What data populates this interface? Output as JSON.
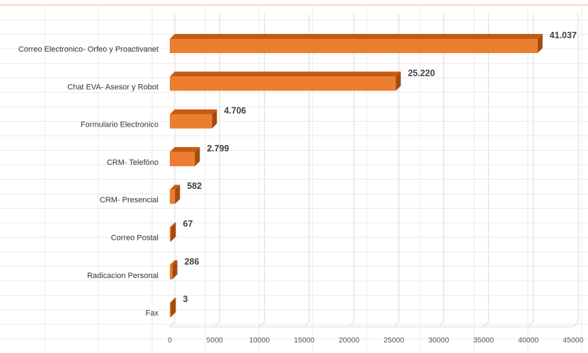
{
  "chart_data": {
    "type": "bar",
    "orientation": "horizontal",
    "style": "3d",
    "title": "",
    "xlabel": "",
    "ylabel": "",
    "categories": [
      "Correo Electronico- Orfeo y Proactivanet",
      "Chat EVA- Asesor y Robot",
      "Formulario Electronico",
      "CRM- Telefóno",
      "CRM- Presencial",
      "Correo Postal",
      "Radicacion Personal",
      "Fax"
    ],
    "values": [
      41037,
      25220,
      4706,
      2799,
      582,
      67,
      286,
      3
    ],
    "value_labels": [
      "41.037",
      "25.220",
      "4.706",
      "2.799",
      "582",
      "67",
      "286",
      "3"
    ],
    "xlim": [
      0,
      45000
    ],
    "x_ticks": [
      0,
      5000,
      10000,
      15000,
      20000,
      25000,
      30000,
      35000,
      40000,
      45000
    ],
    "x_tick_labels": [
      "0",
      "5000",
      "10000",
      "15000",
      "20000",
      "25000",
      "30000",
      "35000",
      "40000",
      "45000"
    ],
    "grid": true,
    "legend": "none",
    "colors": {
      "bar_front": "#ED7D31",
      "bar_top": "#C55A11",
      "bar_side": "#A44B10",
      "grid": "#D9D9D9",
      "frame_accent": "#F4B183"
    }
  }
}
